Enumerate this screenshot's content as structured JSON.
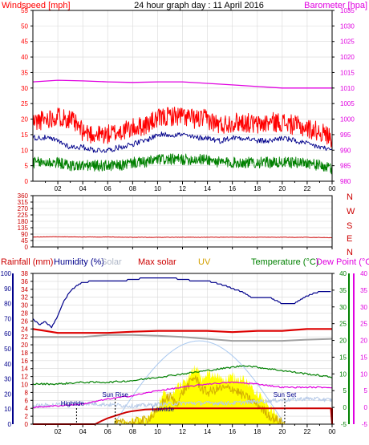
{
  "chart_data": [
    {
      "type": "line",
      "panel": "wind-pressure",
      "title": "24 hour graph day : 11 April 2016",
      "left_label": "Windspeed [mph]",
      "right_label": "Barometer [hpa]",
      "x_ticks": [
        "02",
        "04",
        "06",
        "08",
        "10",
        "12",
        "14",
        "16",
        "18",
        "20",
        "22",
        "00"
      ],
      "y_left_ticks": [
        "0",
        "5",
        "10",
        "15",
        "20",
        "25",
        "30",
        "35",
        "40",
        "45",
        "50",
        "55"
      ],
      "y_left_range": [
        0,
        55
      ],
      "y_right_ticks": [
        "980",
        "985",
        "990",
        "995",
        "1000",
        "1005",
        "1010",
        "1015",
        "1020",
        "1025",
        "1030",
        "1035"
      ],
      "y_right_range": [
        980,
        1035
      ],
      "grid": true,
      "series": [
        {
          "name": "Barometer",
          "color": "#e000e0",
          "axis": "right",
          "x": [
            0,
            2,
            4,
            6,
            8,
            10,
            12,
            14,
            16,
            18,
            20,
            22,
            24
          ],
          "values": [
            1012,
            1012.5,
            1012.3,
            1012,
            1011.8,
            1012,
            1012,
            1011.5,
            1011,
            1010.5,
            1010,
            1010,
            1010
          ]
        },
        {
          "name": "Gust",
          "color": "#ff0000",
          "axis": "left",
          "x": [
            0,
            1,
            2,
            3,
            4,
            5,
            6,
            7,
            8,
            9,
            10,
            11,
            12,
            13,
            14,
            15,
            16,
            17,
            18,
            19,
            20,
            21,
            22,
            23,
            24
          ],
          "values": [
            19,
            20,
            21,
            20,
            16,
            15,
            15,
            16,
            17,
            18,
            20,
            21,
            21,
            20,
            20,
            18,
            19,
            19,
            18,
            19,
            19,
            18,
            17,
            16,
            14
          ]
        },
        {
          "name": "Average",
          "color": "#00008b",
          "axis": "left",
          "x": [
            0,
            1,
            2,
            3,
            4,
            5,
            6,
            7,
            8,
            9,
            10,
            11,
            12,
            13,
            14,
            15,
            16,
            17,
            18,
            19,
            20,
            21,
            22,
            23,
            24
          ],
          "values": [
            14,
            14,
            13,
            11,
            11,
            10,
            10,
            11,
            12,
            13,
            15,
            15,
            15,
            14,
            14,
            13,
            14,
            14,
            13,
            13,
            14,
            13,
            12,
            11,
            10
          ]
        },
        {
          "name": "Wind",
          "color": "#008000",
          "axis": "left",
          "x": [
            0,
            1,
            2,
            3,
            4,
            5,
            6,
            7,
            8,
            9,
            10,
            11,
            12,
            13,
            14,
            15,
            16,
            17,
            18,
            19,
            20,
            21,
            22,
            23,
            24
          ],
          "values": [
            6,
            6,
            6,
            5,
            5,
            5,
            5,
            5,
            6,
            6,
            7,
            7,
            7,
            7,
            7,
            6,
            6,
            6,
            6,
            6,
            6,
            6,
            6,
            5,
            4
          ]
        }
      ]
    },
    {
      "type": "line",
      "panel": "wind-direction",
      "y_left_ticks": [
        "0",
        "45",
        "90",
        "135",
        "180",
        "225",
        "270",
        "315",
        "360"
      ],
      "y_range": [
        0,
        360
      ],
      "y_right_ticks": [
        "N",
        "W",
        "S",
        "E",
        "N"
      ],
      "x_ticks": [
        "02",
        "04",
        "06",
        "08",
        "10",
        "12",
        "14",
        "16",
        "18",
        "20",
        "22",
        "00"
      ],
      "grid": true,
      "series": [
        {
          "name": "Wind direction",
          "color": "#cc0000",
          "x": [
            0,
            2,
            4,
            6,
            8,
            10,
            12,
            14,
            16,
            18,
            20,
            22,
            24
          ],
          "values": [
            70,
            72,
            70,
            70,
            68,
            68,
            68,
            68,
            68,
            68,
            68,
            68,
            65
          ]
        }
      ]
    },
    {
      "type": "line",
      "panel": "multi",
      "headers": {
        "rainfall": "Rainfall (mm)",
        "humidity": "Humidity (%)",
        "solar": "Solar",
        "max_solar": "Max solar",
        "uv": "UV",
        "temperature": "Temperature (°C)",
        "dew_point": "Dew Point (°C)"
      },
      "y_rain_ticks": [
        "0",
        "2",
        "4",
        "6",
        "8",
        "10",
        "12",
        "14",
        "16",
        "18",
        "20",
        "22",
        "24",
        "26",
        "28",
        "30",
        "32",
        "34",
        "36",
        "38"
      ],
      "y_rain_range": [
        0,
        38
      ],
      "y_humidity_ticks": [
        "0",
        "10",
        "20",
        "30",
        "40",
        "50",
        "60",
        "70",
        "80",
        "90",
        "100"
      ],
      "y_humidity_range": [
        0,
        100
      ],
      "y_temp_ticks": [
        "40",
        "35",
        "30",
        "25",
        "20",
        "15",
        "10",
        "5",
        "0",
        "-5"
      ],
      "y_temp_range": [
        -5,
        40
      ],
      "x_ticks": [
        "02",
        "04",
        "06",
        "08",
        "10",
        "12",
        "14",
        "16",
        "18",
        "20",
        "22",
        "00"
      ],
      "annotations": {
        "hightide": "Hightide",
        "sun_rise": "Sun Rise",
        "lowtide": "Lowtide",
        "sun_set": "Sun Set"
      },
      "annotation_times": {
        "hightide": 3.5,
        "sun_rise": 6.6,
        "lowtide": 10.2,
        "sun_set": 20.2
      },
      "series": [
        {
          "name": "Humidity",
          "color": "#00008b",
          "axis": "humidity",
          "x": [
            0,
            0.5,
            1,
            1.5,
            2,
            2.5,
            3,
            3.5,
            4,
            5,
            6,
            7,
            8,
            9,
            10,
            11,
            12,
            13,
            14,
            15,
            16,
            17,
            17.5,
            18,
            19,
            19.5,
            20,
            21,
            22,
            23,
            24
          ],
          "values": [
            70,
            66,
            68,
            64,
            72,
            82,
            88,
            92,
            94,
            95,
            95,
            95,
            96,
            97,
            97,
            97,
            96,
            95,
            95,
            93,
            90,
            87,
            84,
            84,
            84,
            82,
            80,
            80,
            85,
            88,
            88
          ]
        },
        {
          "name": "Temperature",
          "color": "#008000",
          "axis": "temp",
          "x": [
            0,
            2,
            4,
            6,
            8,
            10,
            12,
            14,
            16,
            17,
            18,
            20,
            22,
            24
          ],
          "values": [
            7,
            7,
            7.5,
            7.5,
            8,
            9,
            10,
            11,
            12,
            12.5,
            12,
            11,
            10,
            9
          ]
        },
        {
          "name": "Dew Point",
          "color": "#e000e0",
          "axis": "temp",
          "x": [
            0,
            2,
            4,
            6,
            8,
            10,
            12,
            14,
            16,
            18,
            20,
            22,
            24
          ],
          "values": [
            0,
            0.5,
            1,
            2.5,
            3.5,
            5,
            6,
            7,
            7.5,
            7,
            6,
            6,
            6
          ]
        },
        {
          "name": "Solar",
          "color": "#b8cbe8",
          "axis": "humidity",
          "x": [
            0,
            2,
            4,
            6,
            8,
            10,
            12,
            14,
            16,
            18,
            20,
            22,
            24
          ],
          "values": [
            12,
            13,
            14,
            13,
            12,
            13,
            14,
            14,
            14,
            15,
            16,
            17,
            16
          ]
        },
        {
          "name": "Rainfall",
          "color": "#cc0000",
          "axis": "rain",
          "x": [
            0,
            5,
            5.5,
            6,
            6.5,
            7,
            7.5,
            8,
            9,
            10,
            11,
            12,
            14,
            16,
            18,
            18.5,
            19,
            20,
            21,
            22,
            23,
            23.9,
            24
          ],
          "values": [
            0,
            0,
            0.8,
            1.5,
            2,
            2.5,
            3,
            3.3,
            3.7,
            3.8,
            4,
            4,
            4,
            4,
            4,
            4,
            4,
            4,
            4,
            4,
            4,
            4,
            0
          ]
        },
        {
          "name": "Max solar",
          "color": "#cc0000",
          "axis": "rain",
          "x": [
            0,
            1,
            2,
            4,
            6,
            8,
            10,
            12,
            14,
            16,
            18,
            20,
            22,
            24
          ],
          "values": [
            24,
            23.5,
            23,
            23,
            23,
            23.3,
            23.5,
            23.5,
            23.5,
            23.2,
            23.5,
            23.5,
            24,
            24
          ]
        },
        {
          "name": "Gray line",
          "color": "#a0a0a0",
          "axis": "rain",
          "x": [
            0,
            2,
            4,
            6,
            8,
            10,
            12,
            14,
            16,
            18,
            20,
            22,
            24
          ],
          "values": [
            22,
            22,
            22,
            22.5,
            22.5,
            22.3,
            22,
            21.5,
            21,
            21,
            21,
            21.3,
            21.5
          ]
        },
        {
          "name": "Max solar curve",
          "color": "#a8c8f0",
          "axis": "rain",
          "x": [
            6.5,
            8,
            10,
            12,
            13,
            14,
            16,
            18,
            20.2
          ],
          "values": [
            0,
            8,
            16,
            20,
            21,
            20,
            16,
            8,
            0
          ]
        },
        {
          "name": "UV",
          "color": "#d4b000",
          "axis": "rain",
          "x": [
            6.5,
            8,
            9,
            10,
            10.5,
            11,
            11.5,
            12,
            12.5,
            13,
            13.5,
            14,
            15,
            16,
            17,
            18,
            19,
            20.2
          ],
          "values": [
            0,
            0.5,
            1,
            3,
            6,
            7,
            5,
            8,
            10,
            12,
            9,
            8,
            9,
            9,
            7,
            5,
            2,
            0
          ]
        },
        {
          "name": "Solar fill",
          "color": "#ffff00",
          "axis": "rain",
          "x": [
            6.5,
            8,
            9,
            10,
            10.3,
            10.6,
            11,
            11.5,
            12,
            12.5,
            13,
            13.3,
            13.6,
            14,
            14.5,
            15,
            15.5,
            16,
            17,
            18,
            19,
            20.2
          ],
          "values": [
            0,
            0.5,
            1,
            4,
            7,
            8,
            6,
            9,
            10,
            12,
            14,
            13,
            11,
            13,
            12,
            12,
            11,
            12,
            11,
            8,
            4,
            0
          ]
        }
      ]
    }
  ]
}
